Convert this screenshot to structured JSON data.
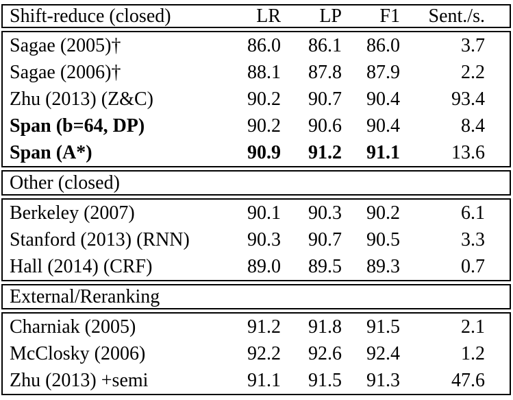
{
  "page": {
    "background": "#ffffff",
    "text_color": "#000000",
    "border_color": "#000000"
  },
  "table": {
    "column_headers": {
      "label": "Shift-reduce (closed)",
      "metrics": [
        "LR",
        "LP",
        "F1",
        "Sent./s."
      ]
    },
    "sections": [
      {
        "title": "Shift-reduce (closed)",
        "rows": [
          {
            "label": "Sagae (2005)†",
            "bold_label": false,
            "values": [
              "86.0",
              "86.1",
              "86.0",
              "3.7"
            ],
            "bold_value_cols": []
          },
          {
            "label": "Sagae (2006)†",
            "bold_label": false,
            "values": [
              "88.1",
              "87.8",
              "87.9",
              "2.2"
            ],
            "bold_value_cols": []
          },
          {
            "label": "Zhu (2013) (Z&C)",
            "bold_label": false,
            "values": [
              "90.2",
              "90.7",
              "90.4",
              "93.4"
            ],
            "bold_value_cols": []
          },
          {
            "label": "Span (b=64, DP)",
            "bold_label": true,
            "values": [
              "90.2",
              "90.6",
              "90.4",
              "8.4"
            ],
            "bold_value_cols": []
          },
          {
            "label": "Span (A*)",
            "bold_label": true,
            "values": [
              "90.9",
              "91.2",
              "91.1",
              "13.6"
            ],
            "bold_value_cols": [
              0,
              1,
              2
            ]
          }
        ]
      },
      {
        "title": "Other (closed)",
        "rows": [
          {
            "label": "Berkeley (2007)",
            "bold_label": false,
            "values": [
              "90.1",
              "90.3",
              "90.2",
              "6.1"
            ],
            "bold_value_cols": []
          },
          {
            "label": "Stanford (2013) (RNN)",
            "bold_label": false,
            "values": [
              "90.3",
              "90.7",
              "90.5",
              "3.3"
            ],
            "bold_value_cols": []
          },
          {
            "label": "Hall (2014) (CRF)",
            "bold_label": false,
            "values": [
              "89.0",
              "89.5",
              "89.3",
              "0.7"
            ],
            "bold_value_cols": []
          }
        ]
      },
      {
        "title": "External/Reranking",
        "rows": [
          {
            "label": "Charniak (2005)",
            "bold_label": false,
            "values": [
              "91.2",
              "91.8",
              "91.5",
              "2.1"
            ],
            "bold_value_cols": []
          },
          {
            "label": "McClosky (2006)",
            "bold_label": false,
            "values": [
              "92.2",
              "92.6",
              "92.4",
              "1.2"
            ],
            "bold_value_cols": []
          },
          {
            "label": "Zhu (2013) +semi",
            "bold_label": false,
            "values": [
              "91.1",
              "91.5",
              "91.3",
              "47.6"
            ],
            "bold_value_cols": []
          }
        ]
      }
    ]
  }
}
